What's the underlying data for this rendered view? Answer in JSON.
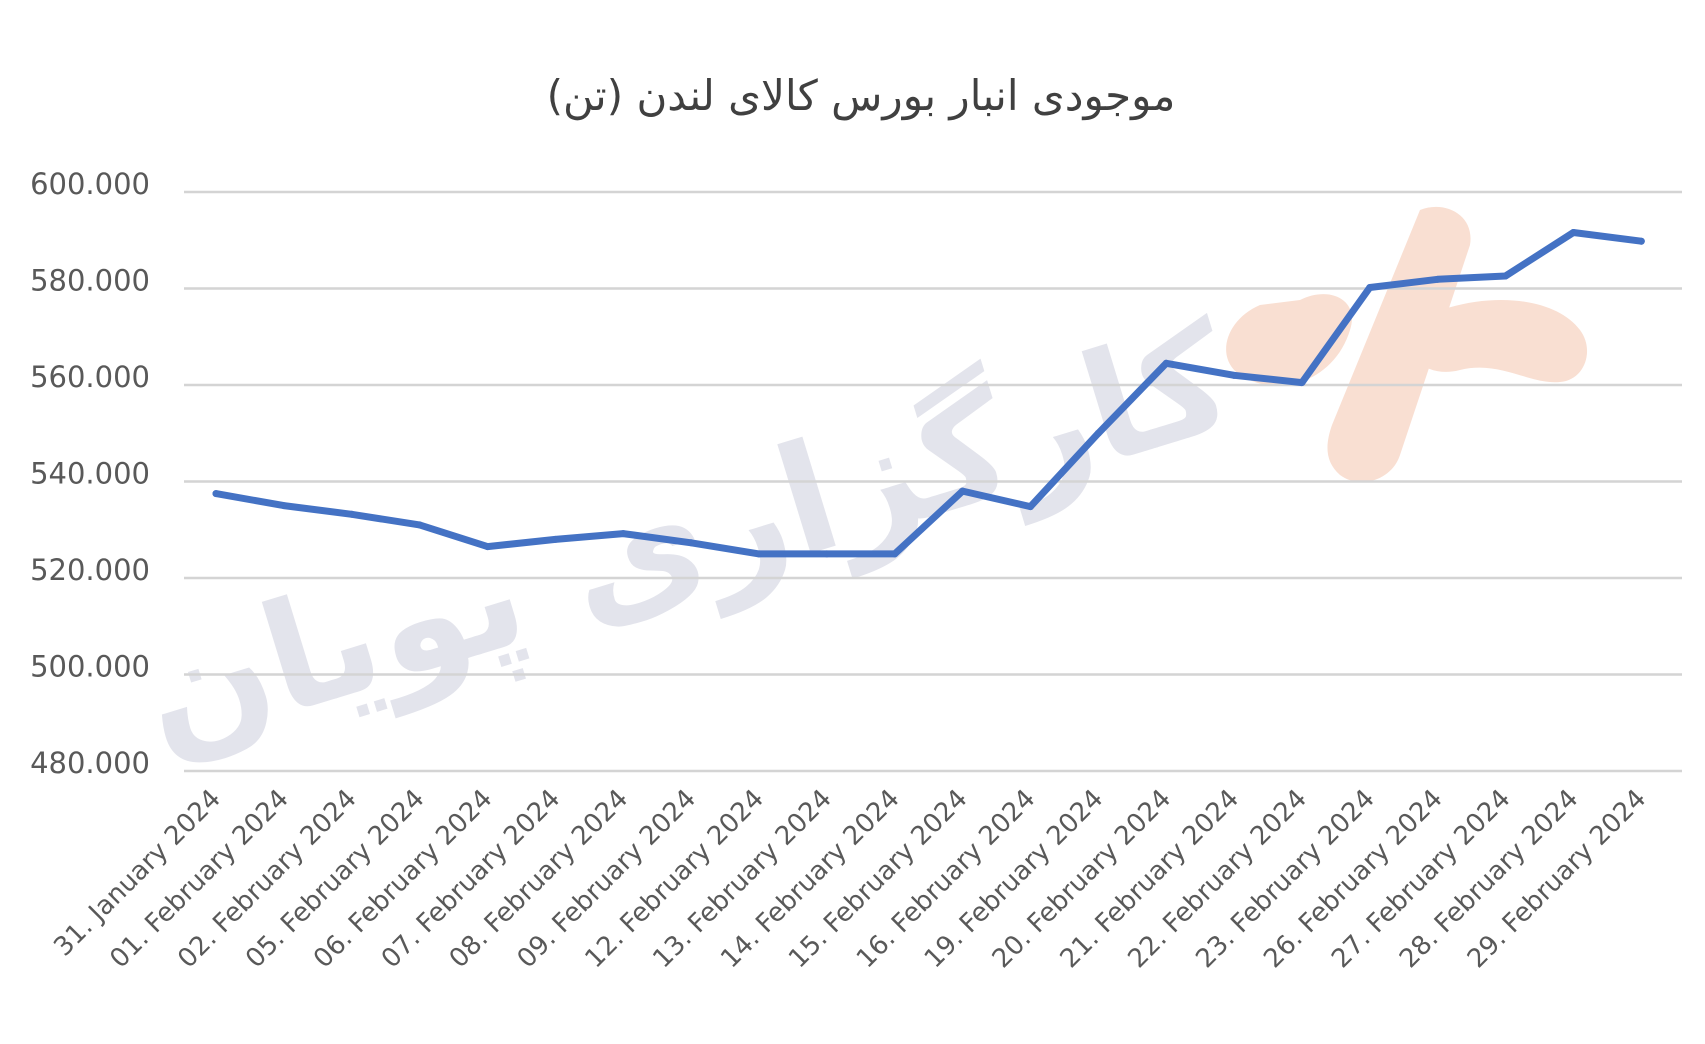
{
  "chart_data": {
    "type": "line",
    "title": "موجودی انبار بورس کالای لندن (تن)",
    "x": [
      "31. January 2024",
      "01. February 2024",
      "02. February 2024",
      "05. February 2024",
      "06. February 2024",
      "07. February 2024",
      "08. February 2024",
      "09. February 2024",
      "12. February 2024",
      "13. February 2024",
      "14. February 2024",
      "15. February 2024",
      "16. February 2024",
      "19. February 2024",
      "20. February 2024",
      "21. February 2024",
      "22. February 2024",
      "23. February 2024",
      "26. February 2024",
      "27. February 2024",
      "28. February 2024",
      "29. February 2024"
    ],
    "series": [
      {
        "values": [
          537500,
          535000,
          533200,
          531000,
          526500,
          528000,
          529200,
          527300,
          525000,
          525000,
          525000,
          538000,
          534800,
          550000,
          564500,
          562000,
          560500,
          580200,
          581900,
          582600,
          591600,
          589800
        ]
      }
    ],
    "yticks": [
      "480.000",
      "500.000",
      "520.000",
      "540.000",
      "560.000",
      "580.000",
      "600.000"
    ],
    "ylim": [
      480000,
      600000
    ],
    "grid": true,
    "legend": "none",
    "line_color": "#4472c4"
  },
  "watermark": {
    "text": "کارگزاری پویان",
    "text_color": "#e3e4ec",
    "logo_color": "#f9dfd2"
  }
}
